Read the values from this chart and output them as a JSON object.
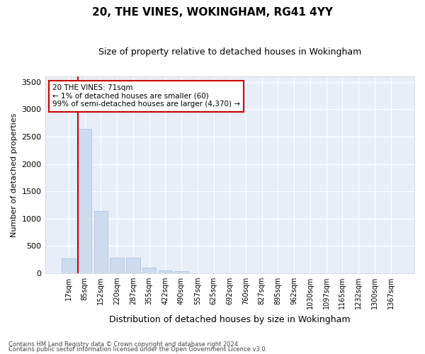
{
  "title": "20, THE VINES, WOKINGHAM, RG41 4YY",
  "subtitle": "Size of property relative to detached houses in Wokingham",
  "xlabel": "Distribution of detached houses by size in Wokingham",
  "ylabel": "Number of detached properties",
  "bar_color": "#ccdcee",
  "bar_edge_color": "#aabbdd",
  "background_color": "#e8eef8",
  "grid_color": "#ffffff",
  "vline_color": "#cc0000",
  "vline_x_index": 1,
  "annotation_text": "20 THE VINES: 71sqm\n← 1% of detached houses are smaller (60)\n99% of semi-detached houses are larger (4,370) →",
  "annotation_box_color": "#ffffff",
  "annotation_border_color": "#cc0000",
  "categories": [
    "17sqm",
    "85sqm",
    "152sqm",
    "220sqm",
    "287sqm",
    "355sqm",
    "422sqm",
    "490sqm",
    "557sqm",
    "625sqm",
    "692sqm",
    "760sqm",
    "827sqm",
    "895sqm",
    "962sqm",
    "1030sqm",
    "1097sqm",
    "1165sqm",
    "1232sqm",
    "1300sqm",
    "1367sqm"
  ],
  "values": [
    275,
    2640,
    1140,
    285,
    285,
    95,
    50,
    35,
    0,
    0,
    0,
    0,
    0,
    0,
    0,
    0,
    0,
    0,
    0,
    0,
    0
  ],
  "ylim": [
    0,
    3600
  ],
  "yticks": [
    0,
    500,
    1000,
    1500,
    2000,
    2500,
    3000,
    3500
  ],
  "footer_line1": "Contains HM Land Registry data © Crown copyright and database right 2024.",
  "footer_line2": "Contains public sector information licensed under the Open Government Licence v3.0."
}
